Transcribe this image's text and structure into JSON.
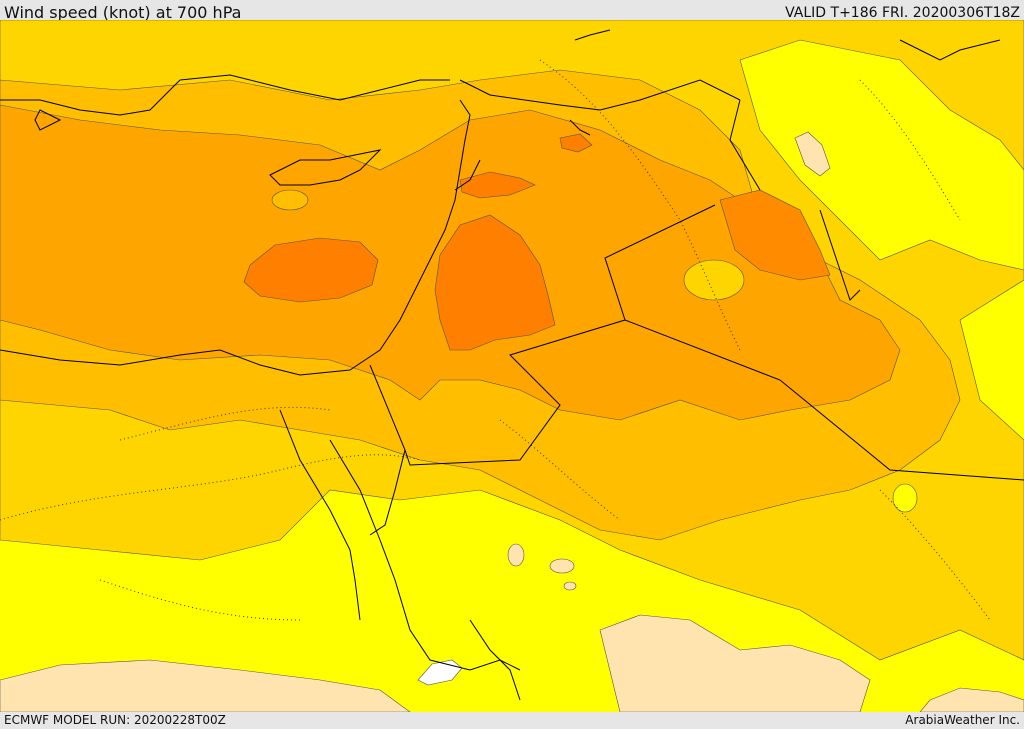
{
  "header": {
    "title": "Wind speed (knot) at 700 hPa",
    "valid": "VALID T+186 FRI. 20200306T18Z"
  },
  "footer": {
    "model_run": "ECMWF MODEL RUN: 20200228T00Z",
    "credit": "ArabiaWeather Inc."
  },
  "colors": {
    "level_1": "#ffffff",
    "level_2": "#ffe4b0",
    "level_3": "#ffff00",
    "level_4": "#ffd500",
    "level_5": "#ffbf00",
    "level_6": "#ffa500",
    "level_7": "#ff7f00",
    "border": "#000000",
    "contour": "#555555",
    "background": "#e6e6e6"
  }
}
